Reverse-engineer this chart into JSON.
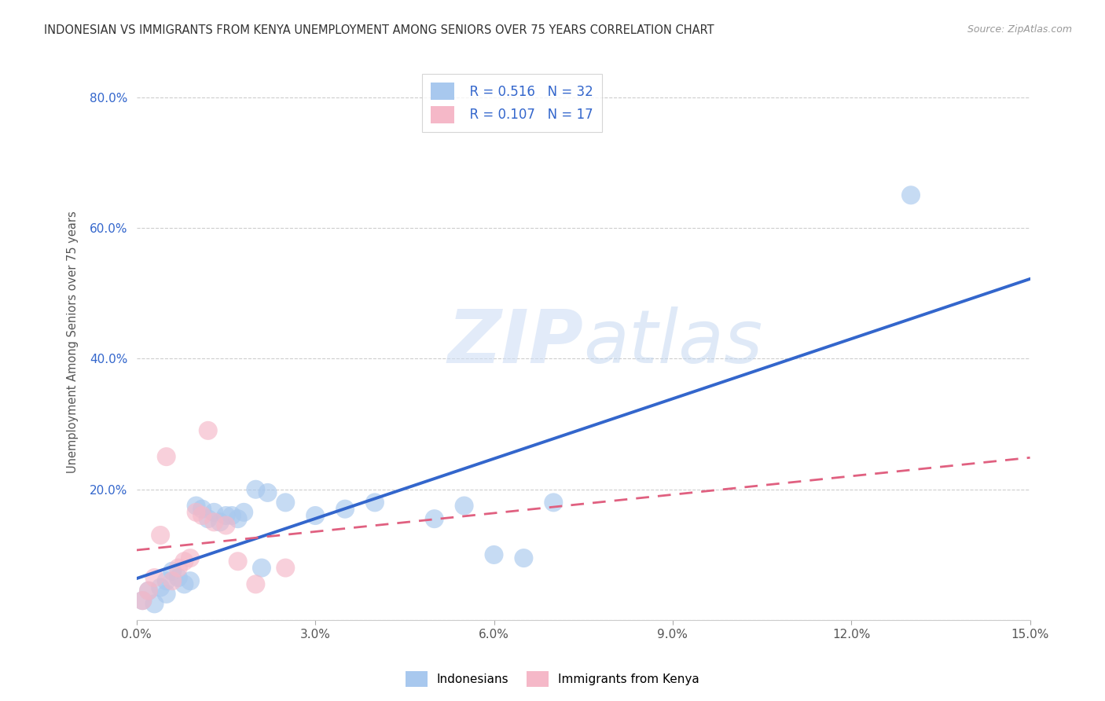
{
  "title": "INDONESIAN VS IMMIGRANTS FROM KENYA UNEMPLOYMENT AMONG SENIORS OVER 75 YEARS CORRELATION CHART",
  "source": "Source: ZipAtlas.com",
  "ylabel": "Unemployment Among Seniors over 75 years",
  "xlim": [
    0.0,
    0.15
  ],
  "ylim": [
    0.0,
    0.85
  ],
  "xticks": [
    0.0,
    0.03,
    0.06,
    0.09,
    0.12,
    0.15
  ],
  "yticks": [
    0.0,
    0.2,
    0.4,
    0.6,
    0.8
  ],
  "xtick_labels": [
    "0.0%",
    "3.0%",
    "6.0%",
    "9.0%",
    "12.0%",
    "15.0%"
  ],
  "ytick_labels": [
    "",
    "20.0%",
    "40.0%",
    "60.0%",
    "80.0%"
  ],
  "legend_r1": "R = 0.516",
  "legend_n1": "N = 32",
  "legend_r2": "R = 0.107",
  "legend_n2": "N = 17",
  "blue_color": "#A8C8EE",
  "pink_color": "#F5B8C8",
  "blue_line_color": "#3366CC",
  "pink_line_color": "#E06080",
  "blue_scatter": [
    [
      0.001,
      0.03
    ],
    [
      0.002,
      0.045
    ],
    [
      0.003,
      0.025
    ],
    [
      0.004,
      0.05
    ],
    [
      0.005,
      0.06
    ],
    [
      0.005,
      0.04
    ],
    [
      0.006,
      0.075
    ],
    [
      0.007,
      0.065
    ],
    [
      0.008,
      0.055
    ],
    [
      0.009,
      0.06
    ],
    [
      0.01,
      0.175
    ],
    [
      0.011,
      0.17
    ],
    [
      0.012,
      0.155
    ],
    [
      0.013,
      0.165
    ],
    [
      0.014,
      0.15
    ],
    [
      0.015,
      0.16
    ],
    [
      0.016,
      0.16
    ],
    [
      0.017,
      0.155
    ],
    [
      0.018,
      0.165
    ],
    [
      0.02,
      0.2
    ],
    [
      0.021,
      0.08
    ],
    [
      0.022,
      0.195
    ],
    [
      0.025,
      0.18
    ],
    [
      0.03,
      0.16
    ],
    [
      0.035,
      0.17
    ],
    [
      0.04,
      0.18
    ],
    [
      0.05,
      0.155
    ],
    [
      0.055,
      0.175
    ],
    [
      0.06,
      0.1
    ],
    [
      0.065,
      0.095
    ],
    [
      0.07,
      0.18
    ],
    [
      0.13,
      0.65
    ]
  ],
  "pink_scatter": [
    [
      0.001,
      0.03
    ],
    [
      0.002,
      0.045
    ],
    [
      0.003,
      0.065
    ],
    [
      0.004,
      0.13
    ],
    [
      0.005,
      0.25
    ],
    [
      0.006,
      0.06
    ],
    [
      0.007,
      0.08
    ],
    [
      0.008,
      0.09
    ],
    [
      0.009,
      0.095
    ],
    [
      0.01,
      0.165
    ],
    [
      0.011,
      0.16
    ],
    [
      0.012,
      0.29
    ],
    [
      0.013,
      0.15
    ],
    [
      0.015,
      0.145
    ],
    [
      0.017,
      0.09
    ],
    [
      0.02,
      0.055
    ],
    [
      0.025,
      0.08
    ]
  ],
  "watermark_zip": "ZIP",
  "watermark_atlas": "atlas",
  "background_color": "#FFFFFF",
  "grid_color": "#C8C8C8"
}
